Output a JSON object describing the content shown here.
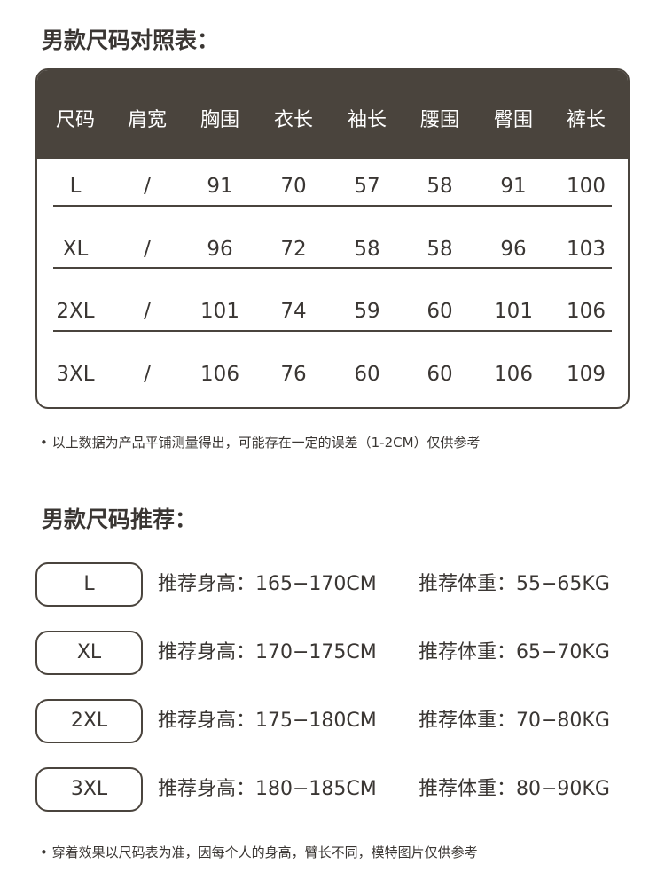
{
  "size_chart": {
    "title": "男款尺码对照表：",
    "header": [
      "尺码",
      "肩宽",
      "胸围",
      "衣长",
      "袖长",
      "腰围",
      "臀围",
      "裤长"
    ],
    "rows": [
      [
        "L",
        "/",
        "91",
        "70",
        "57",
        "58",
        "91",
        "100"
      ],
      [
        "XL",
        "/",
        "96",
        "72",
        "58",
        "58",
        "96",
        "103"
      ],
      [
        "2XL",
        "/",
        "101",
        "74",
        "59",
        "60",
        "101",
        "106"
      ],
      [
        "3XL",
        "/",
        "106",
        "76",
        "60",
        "60",
        "106",
        "109"
      ]
    ],
    "note": "• 以上数据为产品平铺测量得出，可能存在一定的误差（1-2CM）仅供参考"
  },
  "recommendation": {
    "title": "男款尺码推荐：",
    "items": [
      {
        "size": "L",
        "height": "推荐身高：165−170CM",
        "weight": "推荐体重：55−65KG"
      },
      {
        "size": "XL",
        "height": "推荐身高：170−175CM",
        "weight": "推荐体重：65−70KG"
      },
      {
        "size": "2XL",
        "height": "推荐身高：175−180CM",
        "weight": "推荐体重：70−80KG"
      },
      {
        "size": "3XL",
        "height": "推荐身高：180−185CM",
        "weight": "推荐体重：80−90KG"
      }
    ],
    "note": "• 穿着效果以尺码表为准，因每个人的身高，臂长不同，模特图片仅供参考"
  }
}
